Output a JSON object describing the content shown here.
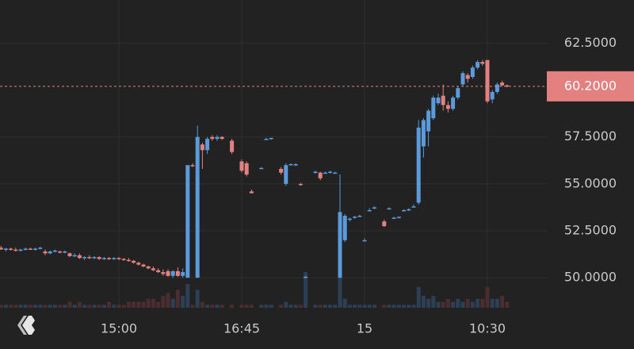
{
  "chart_data": {
    "type": "candlestick",
    "categories": [
      null,
      null,
      null,
      null,
      null,
      null,
      null,
      null,
      null,
      null,
      null,
      null,
      null,
      null,
      null,
      null,
      null,
      null,
      null,
      null,
      null,
      null,
      null,
      null,
      "15:00",
      null,
      null,
      null,
      null,
      null,
      null,
      null,
      null,
      null,
      null,
      null,
      null,
      null,
      null,
      null,
      null,
      null,
      null,
      null,
      null,
      null,
      null,
      null,
      null,
      "16:45",
      null,
      null,
      null,
      null,
      null,
      null,
      null,
      null,
      null,
      null,
      null,
      null,
      null,
      null,
      null,
      null,
      null,
      null,
      null,
      null,
      null,
      null,
      null,
      null,
      "15",
      null,
      null,
      null,
      null,
      null,
      null,
      null,
      null,
      null,
      null,
      null,
      null,
      null,
      null,
      null,
      null,
      null,
      null,
      null,
      null,
      null,
      null,
      null,
      null,
      "10:30",
      null,
      null,
      null,
      null
    ],
    "open": [
      51.6,
      51.5,
      51.55,
      51.5,
      51.45,
      51.5,
      51.55,
      51.5,
      51.55,
      51.4,
      51.3,
      51.4,
      51.4,
      51.35,
      51.3,
      51.15,
      51.2,
      51.05,
      51.1,
      51.05,
      51.1,
      51.0,
      51.05,
      51.0,
      51.05,
      51.0,
      50.95,
      50.9,
      50.8,
      50.7,
      50.6,
      50.5,
      50.4,
      50.3,
      50.35,
      50.1,
      50.35,
      50.1,
      50.0,
      56.0,
      50.0,
      57.1,
      56.8,
      57.5,
      57.4,
      57.5,
      null,
      57.3,
      null,
      56.2,
      56.1,
      54.6,
      null,
      55.8,
      57.4,
      57.4,
      null,
      55.8,
      55.0,
      56.0,
      56.0,
      55.0,
      50.05,
      null,
      55.6,
      55.6,
      55.6,
      55.6,
      55.6,
      50.0,
      52.0,
      53.1,
      53.2,
      53.3,
      52.0,
      53.6,
      53.7,
      null,
      53.0,
      53.7,
      53.2,
      53.2,
      53.6,
      53.6,
      53.8,
      54.0,
      57.0,
      57.8,
      58.5,
      59.3,
      59.7,
      59.2,
      59.0,
      59.6,
      60.3,
      60.8,
      60.7,
      61.2,
      61.5,
      61.6,
      59.5,
      59.9,
      60.4,
      60.25
    ],
    "high": [
      51.7,
      51.6,
      51.6,
      51.6,
      51.55,
      51.6,
      51.6,
      51.6,
      51.65,
      51.5,
      51.45,
      51.5,
      51.45,
      51.45,
      51.35,
      51.3,
      51.3,
      51.15,
      51.2,
      51.15,
      51.15,
      51.1,
      51.1,
      51.1,
      51.1,
      51.05,
      51.05,
      50.95,
      50.85,
      50.75,
      50.65,
      50.6,
      50.5,
      50.45,
      50.45,
      50.4,
      50.55,
      50.5,
      56.0,
      56.1,
      58.1,
      57.2,
      57.5,
      57.6,
      57.6,
      57.55,
      null,
      57.4,
      null,
      56.3,
      56.2,
      54.7,
      null,
      55.9,
      57.45,
      57.45,
      null,
      55.9,
      56.1,
      56.1,
      56.1,
      55.05,
      50.1,
      null,
      55.7,
      55.65,
      55.65,
      55.7,
      55.65,
      55.5,
      53.4,
      53.2,
      53.3,
      53.35,
      52.1,
      53.7,
      53.8,
      null,
      53.1,
      53.75,
      53.25,
      53.25,
      53.65,
      53.7,
      53.9,
      58.4,
      58.5,
      59.0,
      59.7,
      59.8,
      60.3,
      59.4,
      59.7,
      60.2,
      61.0,
      60.9,
      61.3,
      61.6,
      61.6,
      61.6,
      60.0,
      60.4,
      60.5,
      60.3
    ],
    "low": [
      51.5,
      51.4,
      51.45,
      51.4,
      51.4,
      51.45,
      51.5,
      51.45,
      51.5,
      51.2,
      51.25,
      51.35,
      51.3,
      51.3,
      51.1,
      51.1,
      51.0,
      50.95,
      51.0,
      51.0,
      50.95,
      50.95,
      50.95,
      50.95,
      50.95,
      50.9,
      50.85,
      50.75,
      50.65,
      50.55,
      50.45,
      50.35,
      50.25,
      50.1,
      50.05,
      50.0,
      50.05,
      50.0,
      50.0,
      55.9,
      50.0,
      55.8,
      56.6,
      57.3,
      57.3,
      57.35,
      null,
      56.6,
      null,
      55.6,
      55.4,
      54.5,
      null,
      55.8,
      57.4,
      57.35,
      null,
      55.5,
      54.9,
      56.0,
      55.95,
      54.9,
      50.0,
      null,
      55.55,
      55.2,
      55.55,
      55.55,
      55.55,
      50.0,
      51.9,
      53.0,
      53.15,
      53.25,
      51.95,
      53.55,
      53.65,
      null,
      52.7,
      53.65,
      53.15,
      53.15,
      53.55,
      53.55,
      53.75,
      53.9,
      56.4,
      57.0,
      58.4,
      59.2,
      58.9,
      58.8,
      58.9,
      59.5,
      60.2,
      60.4,
      60.6,
      61.1,
      61.3,
      59.3,
      59.3,
      59.8,
      60.2,
      60.15
    ],
    "close": [
      51.5,
      51.55,
      51.5,
      51.45,
      51.5,
      51.55,
      51.5,
      51.55,
      51.6,
      51.3,
      51.4,
      51.45,
      51.35,
      51.4,
      51.15,
      51.2,
      51.05,
      51.1,
      51.05,
      51.1,
      51.0,
      51.05,
      51.0,
      51.05,
      51.0,
      50.95,
      50.9,
      50.8,
      50.7,
      50.6,
      50.5,
      50.4,
      50.3,
      50.2,
      50.1,
      50.35,
      50.1,
      50.3,
      56.0,
      55.95,
      57.5,
      56.8,
      57.4,
      57.4,
      57.5,
      57.4,
      null,
      56.7,
      null,
      55.7,
      55.5,
      54.5,
      null,
      55.85,
      57.4,
      57.45,
      null,
      55.6,
      56.0,
      56.05,
      56.05,
      54.95,
      50.05,
      null,
      55.65,
      55.3,
      55.6,
      55.65,
      55.6,
      53.5,
      53.3,
      53.15,
      53.25,
      53.3,
      52.0,
      53.6,
      53.75,
      null,
      52.75,
      53.7,
      53.2,
      53.25,
      53.6,
      53.65,
      53.8,
      58.0,
      58.4,
      58.9,
      59.6,
      59.6,
      59.2,
      59.0,
      59.6,
      60.1,
      60.9,
      60.6,
      61.2,
      61.5,
      61.4,
      59.4,
      59.9,
      60.3,
      60.25,
      60.2
    ],
    "volume": [
      1,
      1,
      1,
      1,
      1,
      1,
      1,
      1,
      1,
      1,
      1,
      1,
      1,
      1,
      2,
      1,
      2,
      1,
      1,
      1,
      1,
      1,
      2,
      1,
      1,
      1,
      2,
      2,
      2,
      2,
      3,
      3,
      2,
      4,
      5,
      3,
      6,
      4,
      8,
      1,
      6,
      2,
      1,
      1,
      1,
      1,
      0,
      1,
      0,
      1,
      1,
      1,
      0,
      1,
      1,
      1,
      0,
      1,
      2,
      1,
      1,
      1,
      12,
      0,
      1,
      1,
      1,
      1,
      1,
      11,
      3,
      1,
      1,
      1,
      1,
      1,
      1,
      0,
      1,
      1,
      1,
      1,
      1,
      1,
      1,
      7,
      4,
      3,
      4,
      2,
      2,
      3,
      2,
      3,
      2,
      3,
      2,
      3,
      3,
      7,
      3,
      3,
      4,
      2
    ],
    "up_color": "#5b9bdb",
    "down_color": "#e38080",
    "up_volume_color": "#2d3f55",
    "down_volume_color": "#4a2e2f",
    "ylim": [
      48.4,
      64.8
    ],
    "yticks": [
      {
        "value": 50,
        "label": "50.0000"
      },
      {
        "value": 52.5,
        "label": "52.5000"
      },
      {
        "value": 55,
        "label": "55.0000"
      },
      {
        "value": 57.5,
        "label": "57.5000"
      },
      {
        "value": 62.5,
        "label": "62.5000"
      }
    ],
    "price_line": {
      "value": 60.2,
      "label": "60.2000"
    },
    "price_line_color": "#e38080",
    "grid": true
  }
}
